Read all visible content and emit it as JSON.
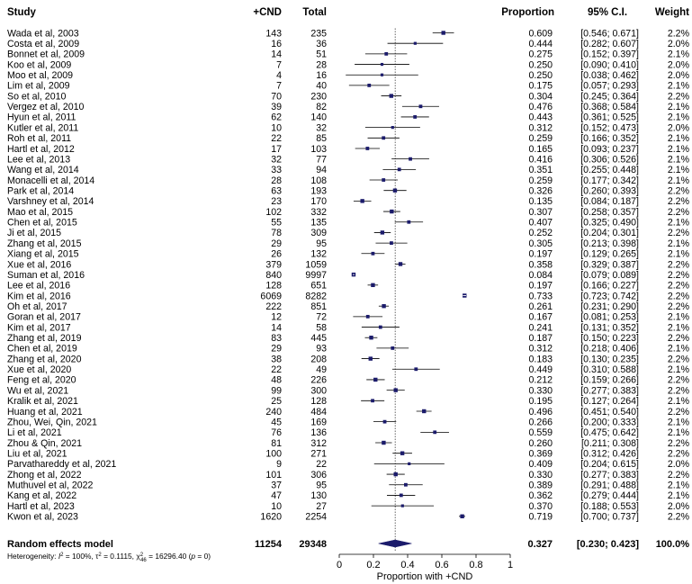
{
  "chart_data": {
    "type": "forest",
    "headers": {
      "study": "Study",
      "events": "+CND",
      "total": "Total",
      "proportion": "Proportion",
      "ci": "95% C.I.",
      "weight": "Weight"
    },
    "studies": [
      {
        "study": "Wada et al, 2003",
        "events": "143",
        "total": "235",
        "prop": 0.609,
        "lo": 0.546,
        "hi": 0.671,
        "prop_text": "0.609",
        "ci_text": "[0.546; 0.671]",
        "weight": "2.2%"
      },
      {
        "study": "Costa et al, 2009",
        "events": "16",
        "total": "36",
        "prop": 0.444,
        "lo": 0.282,
        "hi": 0.607,
        "prop_text": "0.444",
        "ci_text": "[0.282; 0.607]",
        "weight": "2.0%"
      },
      {
        "study": "Bonnet et al, 2009",
        "events": "14",
        "total": "51",
        "prop": 0.275,
        "lo": 0.152,
        "hi": 0.397,
        "prop_text": "0.275",
        "ci_text": "[0.152; 0.397]",
        "weight": "2.1%"
      },
      {
        "study": "Koo et al, 2009",
        "events": "7",
        "total": "28",
        "prop": 0.25,
        "lo": 0.09,
        "hi": 0.41,
        "prop_text": "0.250",
        "ci_text": "[0.090; 0.410]",
        "weight": "2.0%"
      },
      {
        "study": "Moo et al, 2009",
        "events": "4",
        "total": "16",
        "prop": 0.25,
        "lo": 0.038,
        "hi": 0.462,
        "prop_text": "0.250",
        "ci_text": "[0.038; 0.462]",
        "weight": "2.0%"
      },
      {
        "study": "Lim et al, 2009",
        "events": "7",
        "total": "40",
        "prop": 0.175,
        "lo": 0.057,
        "hi": 0.293,
        "prop_text": "0.175",
        "ci_text": "[0.057; 0.293]",
        "weight": "2.1%"
      },
      {
        "study": "So et al, 2010",
        "events": "70",
        "total": "230",
        "prop": 0.304,
        "lo": 0.245,
        "hi": 0.364,
        "prop_text": "0.304",
        "ci_text": "[0.245; 0.364]",
        "weight": "2.2%"
      },
      {
        "study": "Vergez et al, 2010",
        "events": "39",
        "total": "82",
        "prop": 0.476,
        "lo": 0.368,
        "hi": 0.584,
        "prop_text": "0.476",
        "ci_text": "[0.368; 0.584]",
        "weight": "2.1%"
      },
      {
        "study": "Hyun et al, 2011",
        "events": "62",
        "total": "140",
        "prop": 0.443,
        "lo": 0.361,
        "hi": 0.525,
        "prop_text": "0.443",
        "ci_text": "[0.361; 0.525]",
        "weight": "2.1%"
      },
      {
        "study": "Kutler et al, 2011",
        "events": "10",
        "total": "32",
        "prop": 0.312,
        "lo": 0.152,
        "hi": 0.473,
        "prop_text": "0.312",
        "ci_text": "[0.152; 0.473]",
        "weight": "2.0%"
      },
      {
        "study": "Roh et al, 2011",
        "events": "22",
        "total": "85",
        "prop": 0.259,
        "lo": 0.166,
        "hi": 0.352,
        "prop_text": "0.259",
        "ci_text": "[0.166; 0.352]",
        "weight": "2.1%"
      },
      {
        "study": "Hartl et al, 2012",
        "events": "17",
        "total": "103",
        "prop": 0.165,
        "lo": 0.093,
        "hi": 0.237,
        "prop_text": "0.165",
        "ci_text": "[0.093; 0.237]",
        "weight": "2.1%"
      },
      {
        "study": "Lee et al, 2013",
        "events": "32",
        "total": "77",
        "prop": 0.416,
        "lo": 0.306,
        "hi": 0.526,
        "prop_text": "0.416",
        "ci_text": "[0.306; 0.526]",
        "weight": "2.1%"
      },
      {
        "study": "Wang et al, 2014",
        "events": "33",
        "total": "94",
        "prop": 0.351,
        "lo": 0.255,
        "hi": 0.448,
        "prop_text": "0.351",
        "ci_text": "[0.255; 0.448]",
        "weight": "2.1%"
      },
      {
        "study": "Monacelli et al, 2014",
        "events": "28",
        "total": "108",
        "prop": 0.259,
        "lo": 0.177,
        "hi": 0.342,
        "prop_text": "0.259",
        "ci_text": "[0.177; 0.342]",
        "weight": "2.1%"
      },
      {
        "study": "Park et al, 2014",
        "events": "63",
        "total": "193",
        "prop": 0.326,
        "lo": 0.26,
        "hi": 0.393,
        "prop_text": "0.326",
        "ci_text": "[0.260; 0.393]",
        "weight": "2.2%"
      },
      {
        "study": "Varshney et al, 2014",
        "events": "23",
        "total": "170",
        "prop": 0.135,
        "lo": 0.084,
        "hi": 0.187,
        "prop_text": "0.135",
        "ci_text": "[0.084; 0.187]",
        "weight": "2.2%"
      },
      {
        "study": "Mao et al, 2015",
        "events": "102",
        "total": "332",
        "prop": 0.307,
        "lo": 0.258,
        "hi": 0.357,
        "prop_text": "0.307",
        "ci_text": "[0.258; 0.357]",
        "weight": "2.2%"
      },
      {
        "study": "Chen et al, 2015",
        "events": "55",
        "total": "135",
        "prop": 0.407,
        "lo": 0.325,
        "hi": 0.49,
        "prop_text": "0.407",
        "ci_text": "[0.325; 0.490]",
        "weight": "2.1%"
      },
      {
        "study": "Ji et al, 2015",
        "events": "78",
        "total": "309",
        "prop": 0.252,
        "lo": 0.204,
        "hi": 0.301,
        "prop_text": "0.252",
        "ci_text": "[0.204; 0.301]",
        "weight": "2.2%"
      },
      {
        "study": "Zhang et al, 2015",
        "events": "29",
        "total": "95",
        "prop": 0.305,
        "lo": 0.213,
        "hi": 0.398,
        "prop_text": "0.305",
        "ci_text": "[0.213; 0.398]",
        "weight": "2.1%"
      },
      {
        "study": "Xiang et al, 2015",
        "events": "26",
        "total": "132",
        "prop": 0.197,
        "lo": 0.129,
        "hi": 0.265,
        "prop_text": "0.197",
        "ci_text": "[0.129; 0.265]",
        "weight": "2.1%"
      },
      {
        "study": "Xue et al, 2016",
        "events": "379",
        "total": "1059",
        "prop": 0.358,
        "lo": 0.329,
        "hi": 0.387,
        "prop_text": "0.358",
        "ci_text": "[0.329; 0.387]",
        "weight": "2.2%"
      },
      {
        "study": "Suman et al, 2016",
        "events": "840",
        "total": "9997",
        "prop": 0.084,
        "lo": 0.079,
        "hi": 0.089,
        "prop_text": "0.084",
        "ci_text": "[0.079; 0.089]",
        "weight": "2.2%"
      },
      {
        "study": "Lee et al, 2016",
        "events": "128",
        "total": "651",
        "prop": 0.197,
        "lo": 0.166,
        "hi": 0.227,
        "prop_text": "0.197",
        "ci_text": "[0.166; 0.227]",
        "weight": "2.2%"
      },
      {
        "study": "Kim et al, 2016",
        "events": "6069",
        "total": "8282",
        "prop": 0.733,
        "lo": 0.723,
        "hi": 0.742,
        "prop_text": "0.733",
        "ci_text": "[0.723; 0.742]",
        "weight": "2.2%"
      },
      {
        "study": "Oh et al, 2017",
        "events": "222",
        "total": "851",
        "prop": 0.261,
        "lo": 0.231,
        "hi": 0.29,
        "prop_text": "0.261",
        "ci_text": "[0.231; 0.290]",
        "weight": "2.2%"
      },
      {
        "study": "Goran et al, 2017",
        "events": "12",
        "total": "72",
        "prop": 0.167,
        "lo": 0.081,
        "hi": 0.253,
        "prop_text": "0.167",
        "ci_text": "[0.081; 0.253]",
        "weight": "2.1%"
      },
      {
        "study": "Kim et al, 2017",
        "events": "14",
        "total": "58",
        "prop": 0.241,
        "lo": 0.131,
        "hi": 0.352,
        "prop_text": "0.241",
        "ci_text": "[0.131; 0.352]",
        "weight": "2.1%"
      },
      {
        "study": "Zhang et al, 2019",
        "events": "83",
        "total": "445",
        "prop": 0.187,
        "lo": 0.15,
        "hi": 0.223,
        "prop_text": "0.187",
        "ci_text": "[0.150; 0.223]",
        "weight": "2.2%"
      },
      {
        "study": "Chen et al, 2019",
        "events": "29",
        "total": "93",
        "prop": 0.312,
        "lo": 0.218,
        "hi": 0.406,
        "prop_text": "0.312",
        "ci_text": "[0.218; 0.406]",
        "weight": "2.1%"
      },
      {
        "study": "Zhang et al, 2020",
        "events": "38",
        "total": "208",
        "prop": 0.183,
        "lo": 0.13,
        "hi": 0.235,
        "prop_text": "0.183",
        "ci_text": "[0.130; 0.235]",
        "weight": "2.2%"
      },
      {
        "study": "Xue et al, 2020",
        "events": "22",
        "total": "49",
        "prop": 0.449,
        "lo": 0.31,
        "hi": 0.588,
        "prop_text": "0.449",
        "ci_text": "[0.310; 0.588]",
        "weight": "2.1%"
      },
      {
        "study": "Feng et al, 2020",
        "events": "48",
        "total": "226",
        "prop": 0.212,
        "lo": 0.159,
        "hi": 0.266,
        "prop_text": "0.212",
        "ci_text": "[0.159; 0.266]",
        "weight": "2.2%"
      },
      {
        "study": "Wu et al, 2021",
        "events": "99",
        "total": "300",
        "prop": 0.33,
        "lo": 0.277,
        "hi": 0.383,
        "prop_text": "0.330",
        "ci_text": "[0.277; 0.383]",
        "weight": "2.2%"
      },
      {
        "study": "Kralik et al, 2021",
        "events": "25",
        "total": "128",
        "prop": 0.195,
        "lo": 0.127,
        "hi": 0.264,
        "prop_text": "0.195",
        "ci_text": "[0.127; 0.264]",
        "weight": "2.1%"
      },
      {
        "study": "Huang et al, 2021",
        "events": "240",
        "total": "484",
        "prop": 0.496,
        "lo": 0.451,
        "hi": 0.54,
        "prop_text": "0.496",
        "ci_text": "[0.451; 0.540]",
        "weight": "2.2%"
      },
      {
        "study": "Zhou, Wei, Qin, 2021",
        "events": "45",
        "total": "169",
        "prop": 0.266,
        "lo": 0.2,
        "hi": 0.333,
        "prop_text": "0.266",
        "ci_text": "[0.200; 0.333]",
        "weight": "2.1%"
      },
      {
        "study": "Li et al, 2021",
        "events": "76",
        "total": "136",
        "prop": 0.559,
        "lo": 0.475,
        "hi": 0.642,
        "prop_text": "0.559",
        "ci_text": "[0.475; 0.642]",
        "weight": "2.1%"
      },
      {
        "study": "Zhou & Qin, 2021",
        "events": "81",
        "total": "312",
        "prop": 0.26,
        "lo": 0.211,
        "hi": 0.308,
        "prop_text": "0.260",
        "ci_text": "[0.211; 0.308]",
        "weight": "2.2%"
      },
      {
        "study": "Liu et al, 2021",
        "events": "100",
        "total": "271",
        "prop": 0.369,
        "lo": 0.312,
        "hi": 0.426,
        "prop_text": "0.369",
        "ci_text": "[0.312; 0.426]",
        "weight": "2.2%"
      },
      {
        "study": "Parvathareddy et al, 2021",
        "events": "9",
        "total": "22",
        "prop": 0.409,
        "lo": 0.204,
        "hi": 0.615,
        "prop_text": "0.409",
        "ci_text": "[0.204; 0.615]",
        "weight": "2.0%"
      },
      {
        "study": "Zhong et al, 2022",
        "events": "101",
        "total": "306",
        "prop": 0.33,
        "lo": 0.277,
        "hi": 0.383,
        "prop_text": "0.330",
        "ci_text": "[0.277; 0.383]",
        "weight": "2.2%"
      },
      {
        "study": "Muthuvel et al, 2022",
        "events": "37",
        "total": "95",
        "prop": 0.389,
        "lo": 0.291,
        "hi": 0.488,
        "prop_text": "0.389",
        "ci_text": "[0.291; 0.488]",
        "weight": "2.1%"
      },
      {
        "study": "Kang et al, 2022",
        "events": "47",
        "total": "130",
        "prop": 0.362,
        "lo": 0.279,
        "hi": 0.444,
        "prop_text": "0.362",
        "ci_text": "[0.279; 0.444]",
        "weight": "2.1%"
      },
      {
        "study": "Hartl et al, 2023",
        "events": "10",
        "total": "27",
        "prop": 0.37,
        "lo": 0.188,
        "hi": 0.553,
        "prop_text": "0.370",
        "ci_text": "[0.188; 0.553]",
        "weight": "2.0%"
      },
      {
        "study": "Kwon et al, 2023",
        "events": "1620",
        "total": "2254",
        "prop": 0.719,
        "lo": 0.7,
        "hi": 0.737,
        "prop_text": "0.719",
        "ci_text": "[0.700; 0.737]",
        "weight": "2.2%"
      }
    ],
    "summary": {
      "label": "Random effects model",
      "events": "11254",
      "total": "29348",
      "prop": 0.327,
      "lo": 0.23,
      "hi": 0.423,
      "prop_text": "0.327",
      "ci_text": "[0.230; 0.423]",
      "weight": "100.0%"
    },
    "heterogeneity": {
      "prefix": "Heterogeneity: ",
      "i2_label": "I",
      "i2_sup": "2",
      "i2_value": " = 100%, ",
      "tau_label": "τ",
      "tau_sup": "2",
      "tau_value": " = 0.1115, ",
      "chi_label": "χ",
      "chi_sup": "2",
      "chi_sub": "46",
      "chi_value": " = 16296.40 (",
      "p_label": "p",
      "p_value": " = 0)"
    },
    "x_axis": {
      "label": "Proportion with +CND",
      "ticks": [
        0,
        0.2,
        0.4,
        0.6,
        0.8,
        1
      ],
      "tick_labels": [
        "0",
        "0.2",
        "0.4",
        "0.6",
        "0.8",
        "1"
      ],
      "range": [
        0,
        1
      ]
    },
    "colors": {
      "marker": "#1b1b6b",
      "summary": "#1b1b6b",
      "ci_line": "#000000",
      "reference_line": "#000000"
    }
  }
}
